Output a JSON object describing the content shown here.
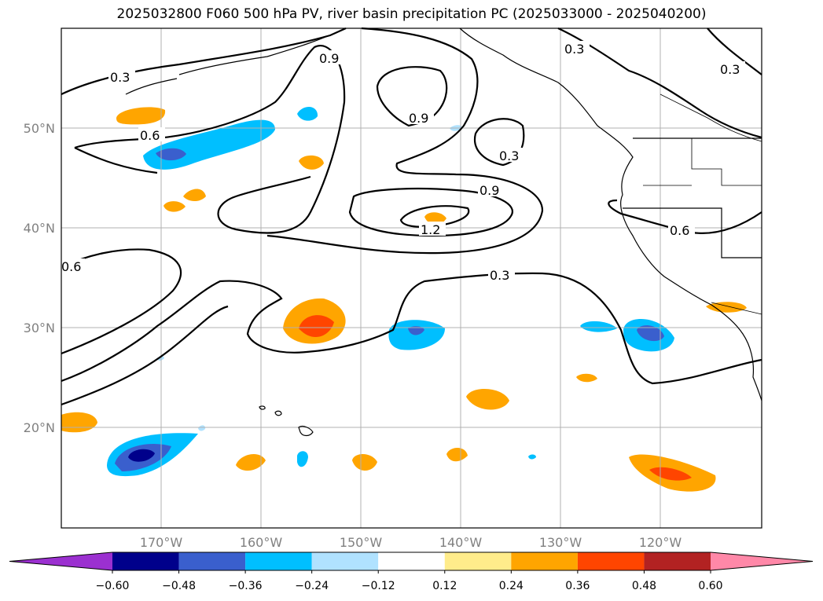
{
  "title": "2025032800 F060 500 hPa PV, river basin precipitation PC (2025033000 - 2025040200)",
  "map": {
    "lat_ticks": [
      "20°N",
      "30°N",
      "40°N",
      "50°N"
    ],
    "lon_ticks": [
      "170°W",
      "160°W",
      "150°W",
      "140°W",
      "130°W",
      "120°W"
    ],
    "pv_contour_labels": [
      "0.3",
      "0.6",
      "0.9",
      "1.2"
    ],
    "contour_color": "#000000",
    "grid": true
  },
  "colorbar": {
    "ticks": [
      "−0.60",
      "−0.48",
      "−0.36",
      "−0.24",
      "−0.12",
      "0.12",
      "0.24",
      "0.36",
      "0.48",
      "0.60"
    ],
    "colors": [
      "#9b30d0",
      "#00008b",
      "#3a5fcd",
      "#00bfff",
      "#b0e2ff",
      "#ffffff",
      "#ffec8b",
      "#ffa500",
      "#ff4500",
      "#b22222",
      "#ff88a8"
    ]
  }
}
